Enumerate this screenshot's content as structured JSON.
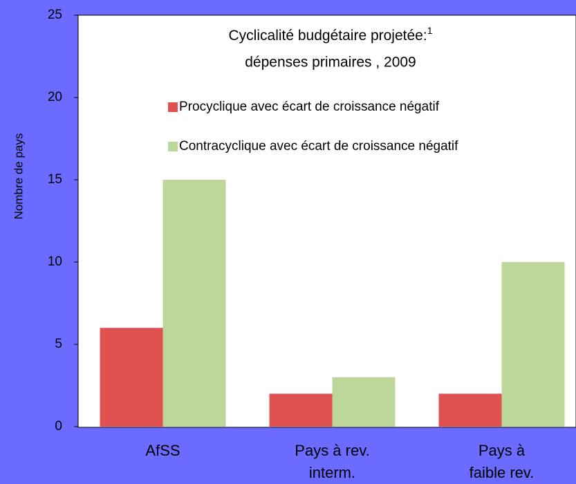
{
  "chart_data": {
    "type": "bar",
    "title": "Cyclicalité budgétaire projetée:",
    "title_superscript": "1",
    "subtitle": "dépenses primaires , 2009",
    "y_label": "Nombre de pays",
    "categories": [
      "AfSS",
      "Pays à rev.\ninterm.",
      "Pays à\nfaible rev."
    ],
    "series": [
      {
        "name": "Procyclique avec écart de croissance négatif",
        "color": "#e05252",
        "values": [
          6,
          2,
          2
        ]
      },
      {
        "name": "Contracyclique avec écart de croissance négatif",
        "color": "#bdd79a",
        "values": [
          15,
          3,
          10
        ]
      }
    ],
    "ylim": [
      0,
      25
    ],
    "yticks": [
      0,
      5,
      10,
      15,
      20,
      25
    ],
    "grid": false
  }
}
